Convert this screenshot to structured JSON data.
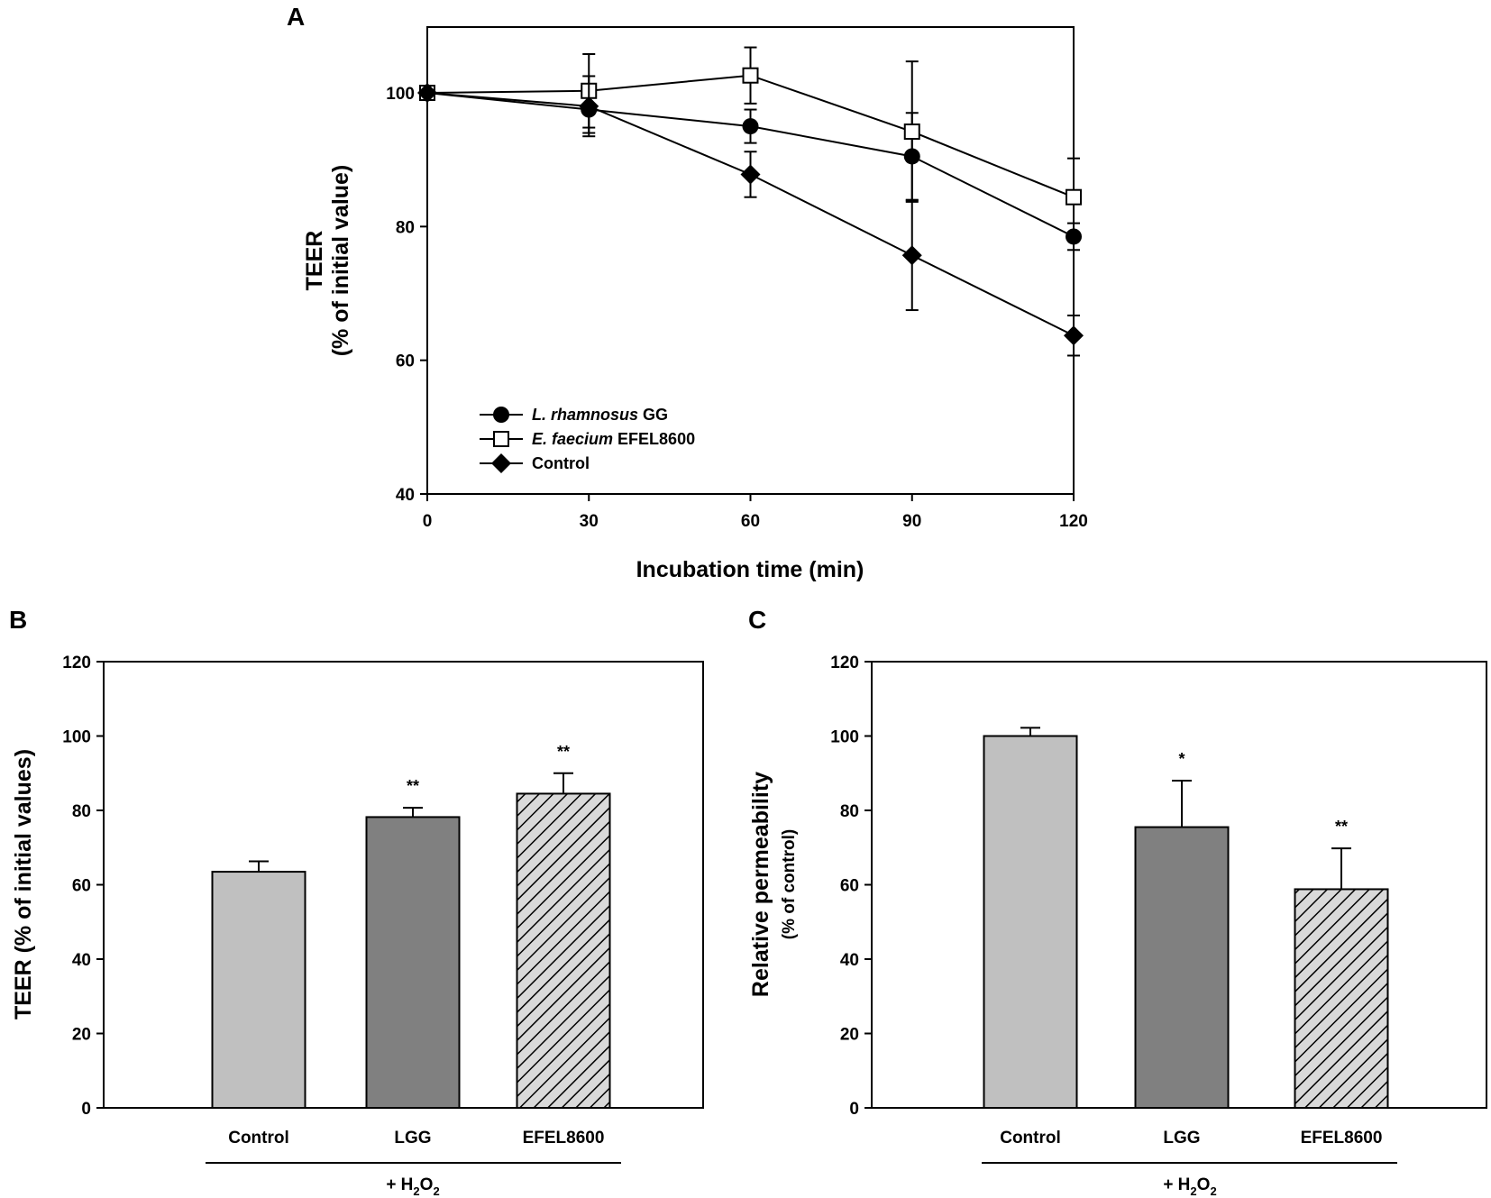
{
  "colors": {
    "control_bar": "#c0c0c0",
    "lgg_bar": "#808080",
    "efel_bar_bg": "#d9d9d9",
    "ink": "#000000"
  },
  "chart_data": [
    {
      "panel": "A",
      "type": "line",
      "xlabel": "Incubation time (min)",
      "ylabel_line1": "TEER",
      "ylabel_line2": "(% of initial value)",
      "x": [
        0,
        30,
        60,
        90,
        120
      ],
      "xticks": [
        0,
        30,
        60,
        90,
        120
      ],
      "xlim": [
        0,
        120
      ],
      "ylim": [
        40,
        110
      ],
      "yticks": [
        40,
        60,
        80,
        100
      ],
      "legend_position": "bottom-left",
      "series": [
        {
          "name_italic": "L. rhamnosus",
          "name_rest": "GG",
          "marker": "filled-circle",
          "values": [
            100,
            97.5,
            95,
            90.5,
            78.5
          ],
          "errors": [
            0,
            3.5,
            2.5,
            6.5,
            2
          ]
        },
        {
          "name_italic": "E. faecium",
          "name_rest": "EFEL8600",
          "marker": "open-square",
          "values": [
            100,
            100.3,
            102.6,
            94.2,
            84.4
          ],
          "errors": [
            0,
            5.5,
            4.2,
            10.5,
            5.8
          ]
        },
        {
          "name_italic": "",
          "name_rest": "Control",
          "marker": "filled-diamond",
          "values": [
            100,
            98,
            87.8,
            75.7,
            63.7
          ],
          "errors": [
            0,
            4.5,
            3.4,
            8.2,
            3
          ]
        }
      ]
    },
    {
      "panel": "B",
      "type": "bar",
      "ylabel": "TEER (% of initial values)",
      "categories": [
        "Control",
        "LGG",
        "EFEL8600"
      ],
      "values": [
        63.5,
        78.2,
        84.5
      ],
      "errors": [
        2.8,
        2.5,
        5.5
      ],
      "significance": [
        "",
        "**",
        "**"
      ],
      "treatment_label": "+ H",
      "treatment_sub": "2",
      "treatment_label_end": "O",
      "treatment_sub_end": "2",
      "ylim": [
        0,
        120
      ],
      "yticks": [
        0,
        20,
        40,
        60,
        80,
        100,
        120
      ]
    },
    {
      "panel": "C",
      "type": "bar",
      "ylabel_line1": "Relative permeability",
      "ylabel_line2": "(% of control)",
      "categories": [
        "Control",
        "LGG",
        "EFEL8600"
      ],
      "values": [
        100,
        75.5,
        58.8
      ],
      "errors": [
        2.2,
        12.5,
        11
      ],
      "significance": [
        "",
        "*",
        "**"
      ],
      "treatment_label": "+ H",
      "treatment_sub": "2",
      "treatment_label_end": "O",
      "treatment_sub_end": "2",
      "ylim": [
        0,
        120
      ],
      "yticks": [
        0,
        20,
        40,
        60,
        80,
        100,
        120
      ]
    }
  ]
}
